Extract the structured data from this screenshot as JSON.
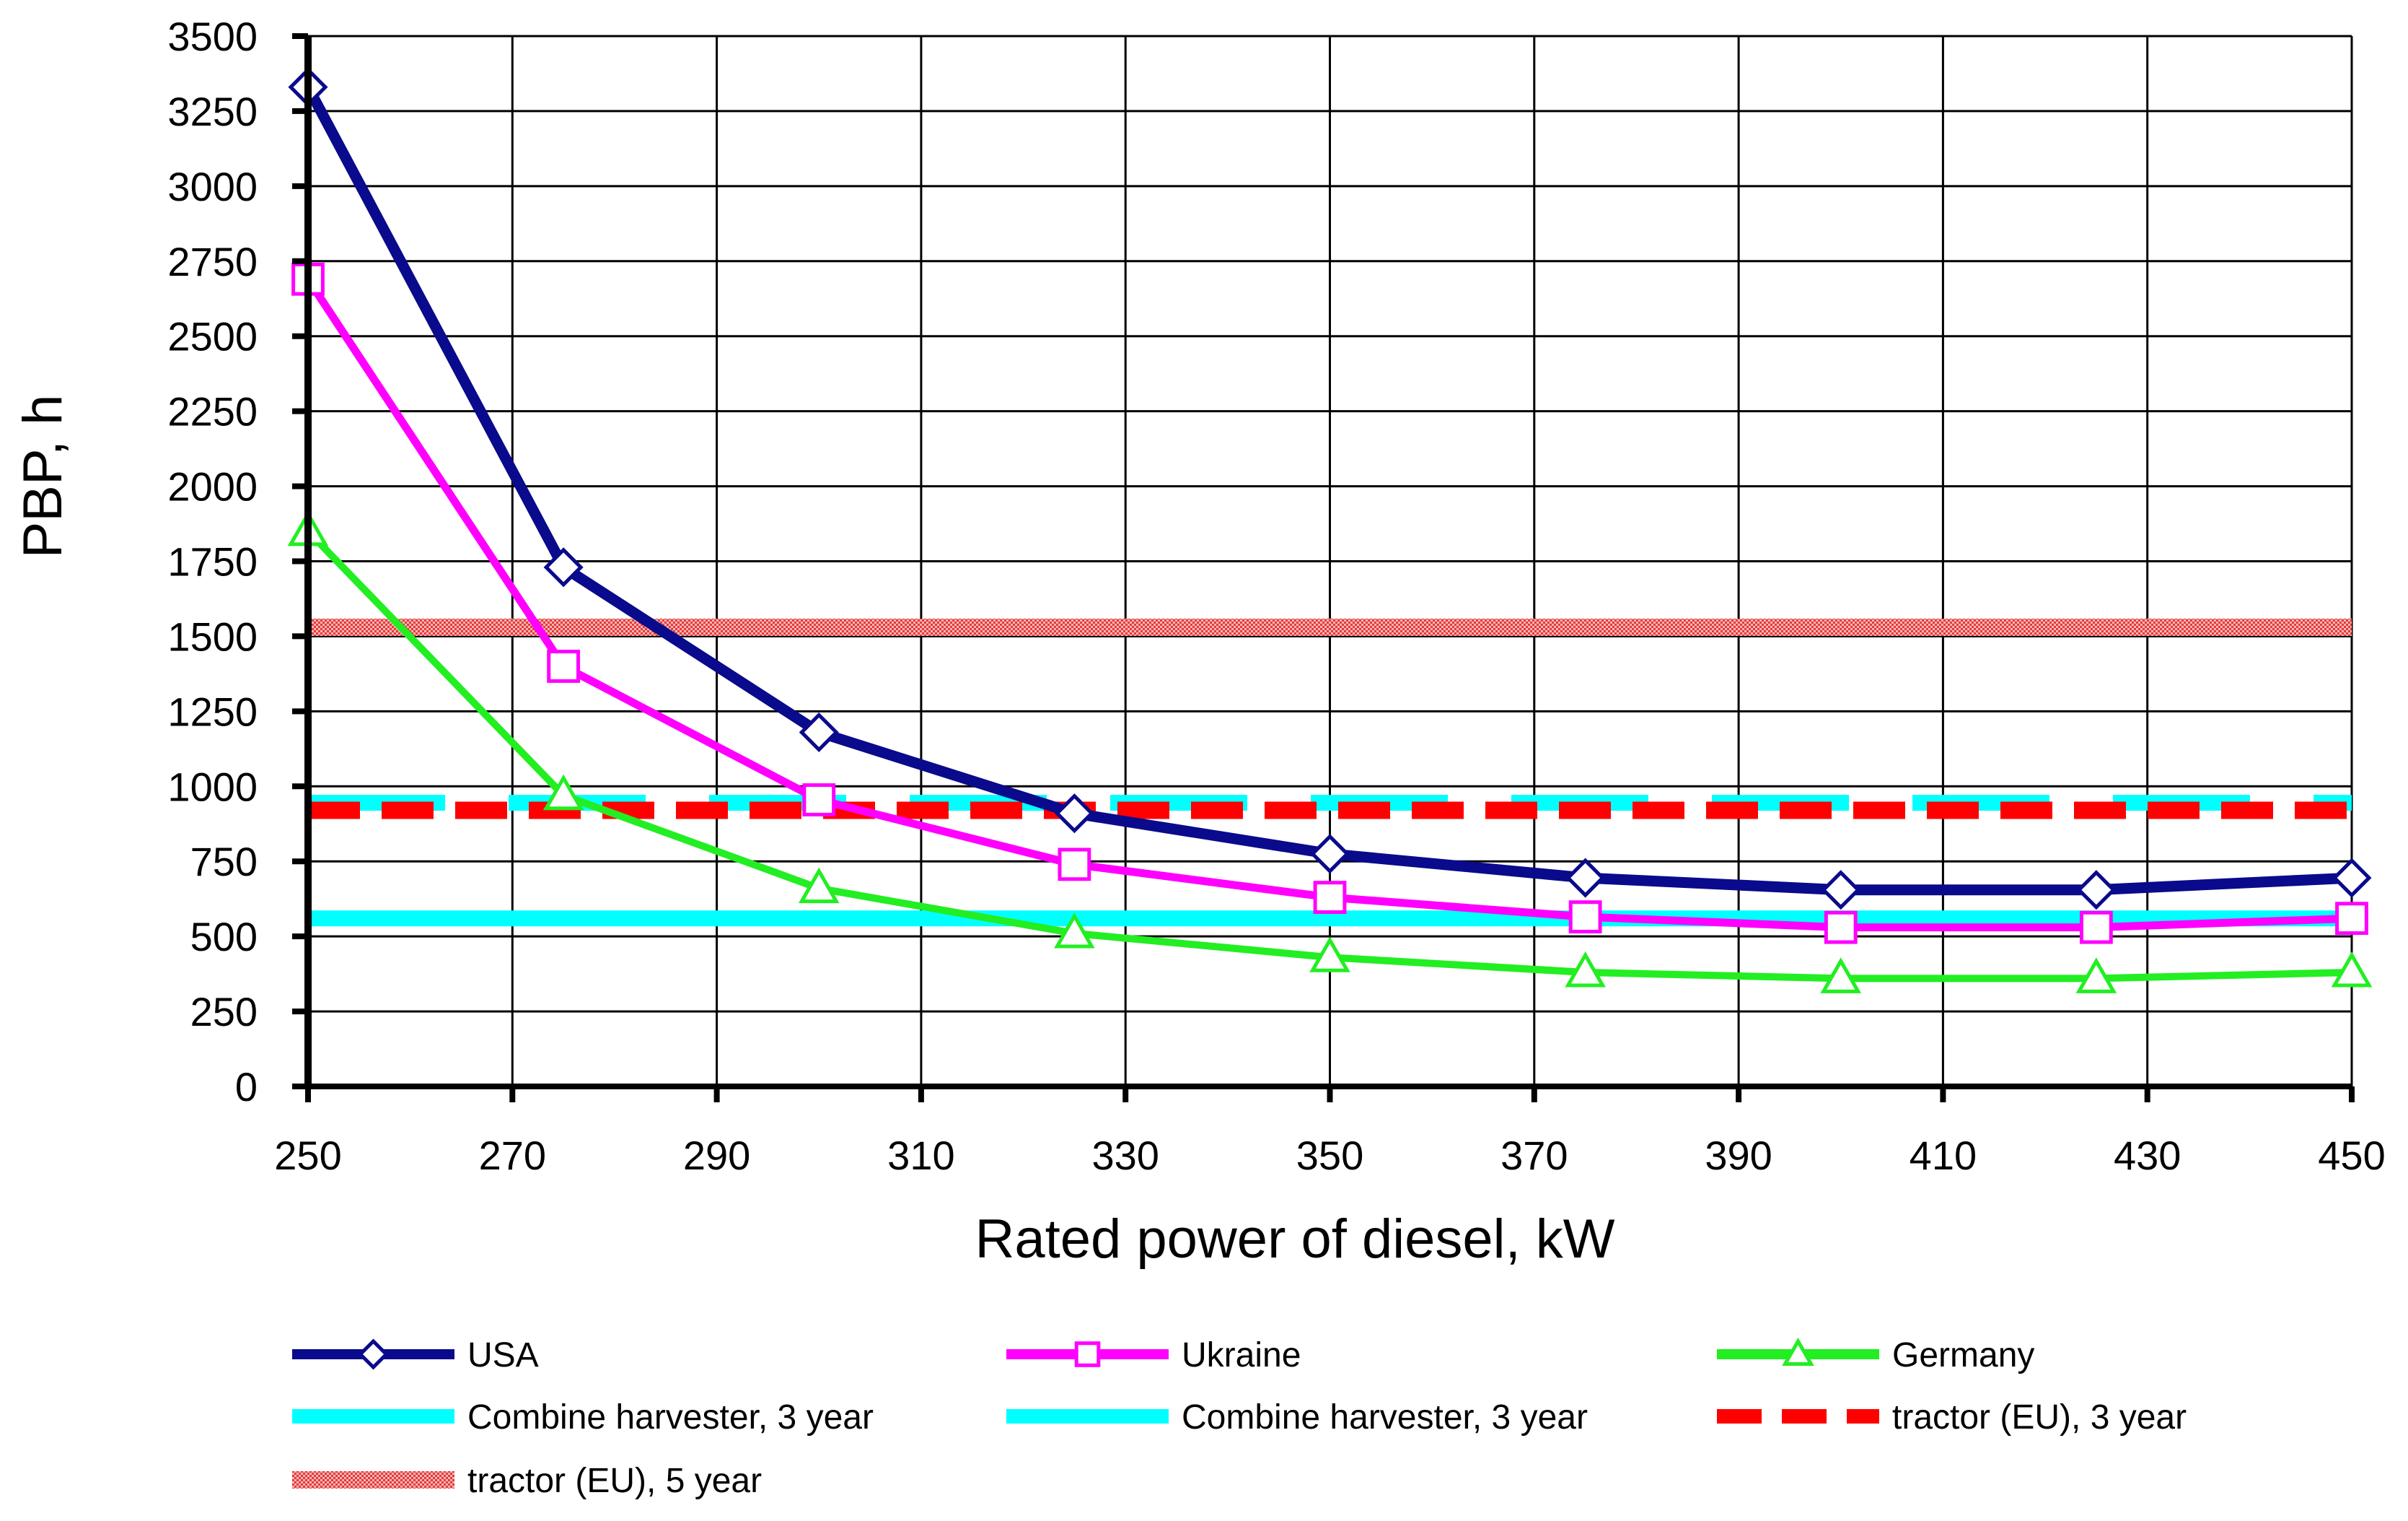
{
  "chart_data": {
    "type": "line",
    "title": "",
    "xlabel": "Rated power of diesel, kW",
    "ylabel": "PBP, h",
    "xlim": [
      250,
      450
    ],
    "ylim": [
      0,
      3500
    ],
    "x_ticks": [
      250,
      270,
      290,
      310,
      330,
      350,
      370,
      390,
      410,
      430,
      450
    ],
    "y_ticks": [
      0,
      250,
      500,
      750,
      1000,
      1250,
      1500,
      1750,
      2000,
      2250,
      2500,
      2750,
      3000,
      3250,
      3500
    ],
    "grid": true,
    "legend_position": "bottom",
    "x": [
      250,
      275,
      300,
      325,
      350,
      375,
      400,
      425,
      450
    ],
    "series": [
      {
        "name": "USA",
        "color": "#0A0A8C",
        "marker": "diamond",
        "style": "solid",
        "values": [
          3330,
          1730,
          1180,
          910,
          775,
          695,
          655,
          655,
          695
        ]
      },
      {
        "name": "Ukraine",
        "color": "#FF00FF",
        "marker": "square",
        "style": "solid",
        "values": [
          2690,
          1400,
          955,
          740,
          630,
          565,
          530,
          530,
          560
        ]
      },
      {
        "name": "Germany",
        "color": "#22EE22",
        "marker": "triangle",
        "style": "solid",
        "values": [
          1850,
          970,
          660,
          510,
          430,
          380,
          360,
          360,
          380
        ]
      },
      {
        "name": "Combine harvester, 3 year",
        "color": "#00FFFF",
        "marker": "none",
        "style": "solid",
        "values": [
          560,
          560,
          560,
          560,
          560,
          560,
          560,
          560,
          560
        ]
      },
      {
        "name": "Combine harvester, 3 year",
        "color": "#00FFFF",
        "marker": "none",
        "style": "longdash",
        "values": [
          945,
          945,
          945,
          945,
          945,
          945,
          945,
          945,
          945
        ]
      },
      {
        "name": "tractor (EU), 3 year",
        "color": "#FF0000",
        "marker": "none",
        "style": "dash",
        "values": [
          920,
          920,
          920,
          920,
          920,
          920,
          920,
          920,
          920
        ]
      },
      {
        "name": "tractor (EU), 5 year",
        "color": "#F07070",
        "marker": "none",
        "style": "hatched",
        "values": [
          1530,
          1530,
          1530,
          1530,
          1530,
          1530,
          1530,
          1530,
          1530
        ]
      }
    ]
  }
}
